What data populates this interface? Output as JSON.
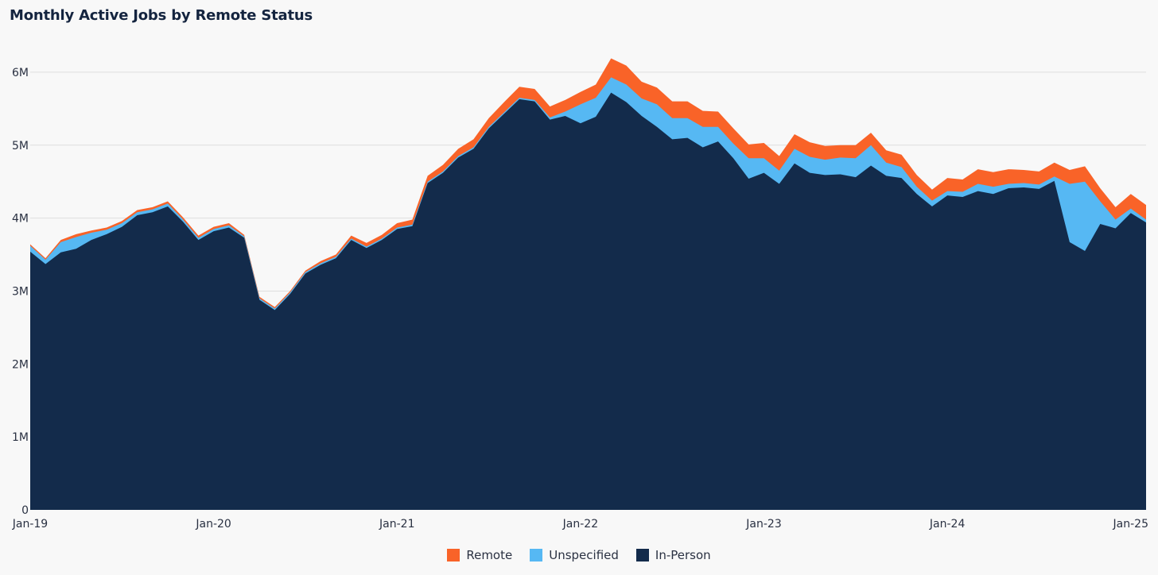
{
  "chart_data": {
    "type": "area",
    "stacked": true,
    "title": "Monthly Active Jobs by Remote Status",
    "xlabel": "",
    "ylabel": "",
    "ylim": [
      0,
      6500000
    ],
    "yticks": [
      0,
      1000000,
      2000000,
      3000000,
      4000000,
      5000000,
      6000000
    ],
    "ytick_labels": [
      "0",
      "1M",
      "2M",
      "3M",
      "4M",
      "5M",
      "6M"
    ],
    "xtick_labels": [
      "Jan-19",
      "Jan-20",
      "Jan-21",
      "Jan-22",
      "Jan-23",
      "Jan-24",
      "Jan-25"
    ],
    "grid": true,
    "legend_position": "bottom",
    "x": [
      "Jan-19",
      "Feb-19",
      "Mar-19",
      "Apr-19",
      "May-19",
      "Jun-19",
      "Jul-19",
      "Aug-19",
      "Sep-19",
      "Oct-19",
      "Nov-19",
      "Dec-19",
      "Jan-20",
      "Feb-20",
      "Mar-20",
      "Apr-20",
      "May-20",
      "Jun-20",
      "Jul-20",
      "Aug-20",
      "Sep-20",
      "Oct-20",
      "Nov-20",
      "Dec-20",
      "Jan-21",
      "Feb-21",
      "Mar-21",
      "Apr-21",
      "May-21",
      "Jun-21",
      "Jul-21",
      "Aug-21",
      "Sep-21",
      "Oct-21",
      "Nov-21",
      "Dec-21",
      "Jan-22",
      "Feb-22",
      "Mar-22",
      "Apr-22",
      "May-22",
      "Jun-22",
      "Jul-22",
      "Aug-22",
      "Sep-22",
      "Oct-22",
      "Nov-22",
      "Dec-22",
      "Jan-23",
      "Feb-23",
      "Mar-23",
      "Apr-23",
      "May-23",
      "Jun-23",
      "Jul-23",
      "Aug-23",
      "Sep-23",
      "Oct-23",
      "Nov-23",
      "Dec-23",
      "Jan-24",
      "Feb-24",
      "Mar-24",
      "Apr-24",
      "May-24",
      "Jun-24",
      "Jul-24",
      "Aug-24",
      "Sep-24",
      "Oct-24",
      "Nov-24",
      "Dec-24",
      "Jan-25",
      "Feb-25"
    ],
    "series": [
      {
        "name": "In-Person",
        "color": "#132b4b",
        "values": [
          3540000,
          3370000,
          3530000,
          3580000,
          3700000,
          3780000,
          3880000,
          4040000,
          4080000,
          4160000,
          3950000,
          3700000,
          3820000,
          3870000,
          3730000,
          2880000,
          2740000,
          2960000,
          3240000,
          3360000,
          3450000,
          3700000,
          3590000,
          3700000,
          3850000,
          3890000,
          4480000,
          4620000,
          4830000,
          4950000,
          5230000,
          5430000,
          5630000,
          5600000,
          5350000,
          5400000,
          5300000,
          5390000,
          5720000,
          5590000,
          5400000,
          5250000,
          5080000,
          5100000,
          4970000,
          5050000,
          4820000,
          4540000,
          4620000,
          4470000,
          4750000,
          4620000,
          4590000,
          4600000,
          4560000,
          4720000,
          4580000,
          4550000,
          4330000,
          4160000,
          4310000,
          4290000,
          4370000,
          4330000,
          4410000,
          4420000,
          4400000,
          4510000,
          3670000,
          3550000,
          3920000,
          3860000,
          4070000,
          3940000
        ]
      },
      {
        "name": "Unspecified",
        "color": "#56b8f3",
        "values": [
          80000,
          60000,
          140000,
          160000,
          100000,
          60000,
          50000,
          40000,
          40000,
          40000,
          30000,
          30000,
          30000,
          30000,
          20000,
          20000,
          20000,
          20000,
          20000,
          20000,
          20000,
          20000,
          20000,
          20000,
          20000,
          20000,
          20000,
          20000,
          20000,
          20000,
          20000,
          20000,
          20000,
          20000,
          30000,
          60000,
          260000,
          260000,
          210000,
          240000,
          240000,
          310000,
          290000,
          270000,
          280000,
          200000,
          200000,
          280000,
          200000,
          180000,
          200000,
          220000,
          210000,
          230000,
          260000,
          280000,
          180000,
          150000,
          100000,
          80000,
          60000,
          70000,
          100000,
          100000,
          60000,
          60000,
          60000,
          60000,
          800000,
          950000,
          310000,
          120000,
          60000,
          40000
        ]
      },
      {
        "name": "Remote",
        "color": "#f96328",
        "values": [
          20000,
          20000,
          30000,
          40000,
          30000,
          30000,
          30000,
          30000,
          30000,
          30000,
          30000,
          30000,
          30000,
          30000,
          20000,
          20000,
          20000,
          20000,
          20000,
          30000,
          30000,
          40000,
          50000,
          50000,
          60000,
          70000,
          80000,
          90000,
          100000,
          110000,
          120000,
          140000,
          150000,
          150000,
          150000,
          160000,
          170000,
          180000,
          260000,
          260000,
          230000,
          230000,
          230000,
          230000,
          220000,
          210000,
          210000,
          190000,
          210000,
          200000,
          200000,
          200000,
          190000,
          170000,
          180000,
          170000,
          170000,
          170000,
          160000,
          150000,
          180000,
          170000,
          200000,
          200000,
          200000,
          180000,
          180000,
          190000,
          190000,
          210000,
          180000,
          170000,
          200000,
          200000
        ]
      }
    ]
  }
}
